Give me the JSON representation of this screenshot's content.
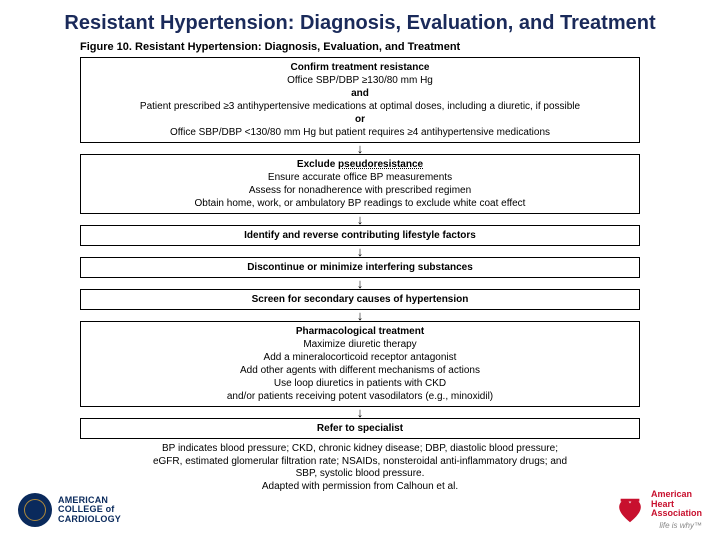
{
  "title": "Resistant Hypertension: Diagnosis, Evaluation, and Treatment",
  "figure_caption": "Figure 10. Resistant Hypertension: Diagnosis, Evaluation, and Treatment",
  "flow": {
    "box1": {
      "heading": "Confirm treatment resistance",
      "l1": "Office SBP/DBP ≥130/80 mm Hg",
      "l2": "and",
      "l3": "Patient prescribed ≥3 antihypertensive medications at optimal doses, including a diuretic, if possible",
      "l4": "or",
      "l5": "Office SBP/DBP <130/80 mm Hg but patient requires ≥4 antihypertensive medications"
    },
    "box2": {
      "heading_pre": "Exclude ",
      "heading_word": "pseudoresistance",
      "l1": "Ensure accurate office BP measurements",
      "l2": "Assess for nonadherence with prescribed regimen",
      "l3": "Obtain home, work, or ambulatory BP readings to exclude white coat effect"
    },
    "box3": {
      "heading": "Identify and reverse contributing lifestyle factors"
    },
    "box4": {
      "heading": "Discontinue or minimize interfering substances"
    },
    "box5": {
      "heading": "Screen for secondary causes of hypertension"
    },
    "box6": {
      "heading": "Pharmacological treatment",
      "l1": "Maximize diuretic therapy",
      "l2": "Add a mineralocorticoid receptor antagonist",
      "l3": "Add other agents with different mechanisms of actions",
      "l4": "Use loop diuretics in patients with CKD",
      "l5": "and/or patients receiving potent vasodilators (e.g., minoxidil)"
    },
    "box7": {
      "heading": "Refer to specialist"
    }
  },
  "footnote": "BP indicates blood pressure; CKD, chronic kidney disease; DBP, diastolic blood pressure; eGFR, estimated glomerular filtration rate; NSAIDs, nonsteroidal anti-inflammatory drugs; and SBP, systolic blood pressure.\nAdapted with permission from Calhoun et al.",
  "logos": {
    "acc_line1": "AMERICAN",
    "acc_line2": "COLLEGE of",
    "acc_line3": "CARDIOLOGY",
    "aha_line1": "American",
    "aha_line2": "Heart",
    "aha_line3": "Association",
    "aha_tag": "life is why™"
  },
  "style": {
    "title_color": "#1a2a5a",
    "border_color": "#000000",
    "acc_color": "#0a2a5c",
    "aha_color": "#c8102e",
    "arrow_glyph": "↓"
  }
}
